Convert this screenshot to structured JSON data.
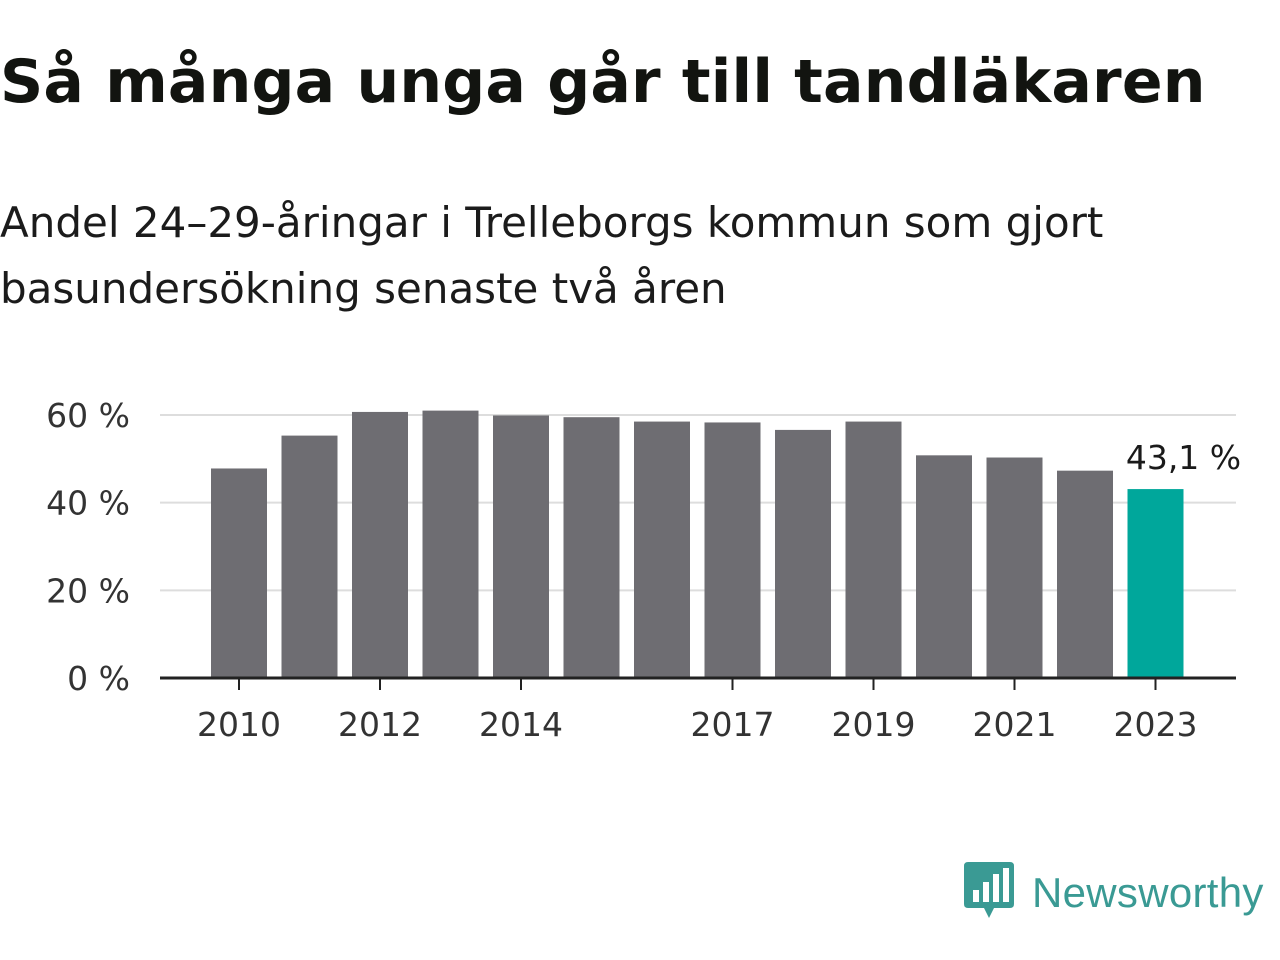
{
  "title": "Så många unga går till tandläkaren",
  "subtitle": "Andel 24–29-åringar i Trelleborgs kommun som gjort basundersökning senaste två åren",
  "colors": {
    "bar": "#6e6d72",
    "highlight": "#00a79b",
    "grid": "#dddddd",
    "axis": "#222222",
    "logo": "#3a9a94"
  },
  "chart_data": {
    "type": "bar",
    "categories": [
      "2010",
      "2011",
      "2012",
      "2013",
      "2014",
      "2015",
      "2016",
      "2017",
      "2018",
      "2019",
      "2020",
      "2021",
      "2022",
      "2023"
    ],
    "values": [
      47.8,
      55.3,
      60.7,
      61.0,
      59.9,
      59.5,
      58.5,
      58.3,
      56.6,
      58.5,
      50.8,
      50.3,
      47.3,
      43.1
    ],
    "highlight_index": 13,
    "x_tick_labels": [
      "2010",
      "2012",
      "2014",
      "2017",
      "2019",
      "2021",
      "2023"
    ],
    "y_ticks": [
      0,
      20,
      40,
      60
    ],
    "y_tick_labels": [
      "0 %",
      "20 %",
      "40 %",
      "60 %"
    ],
    "ylim": [
      0,
      60
    ],
    "grid": true,
    "annotation": {
      "index": 13,
      "text": "43,1 %"
    }
  },
  "logo": {
    "text": "Newsworthy",
    "icon": "newsworthy-logo-icon"
  }
}
